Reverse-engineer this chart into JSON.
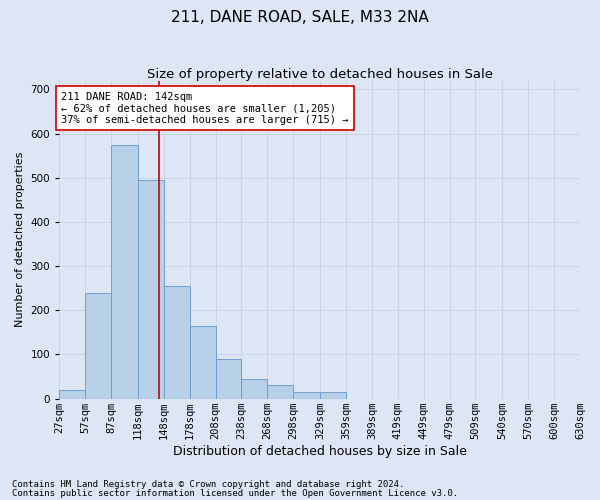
{
  "title": "211, DANE ROAD, SALE, M33 2NA",
  "subtitle": "Size of property relative to detached houses in Sale",
  "xlabel": "Distribution of detached houses by size in Sale",
  "ylabel": "Number of detached properties",
  "footnote1": "Contains HM Land Registry data © Crown copyright and database right 2024.",
  "footnote2": "Contains public sector information licensed under the Open Government Licence v3.0.",
  "annotation_line1": "211 DANE ROAD: 142sqm",
  "annotation_line2": "← 62% of detached houses are smaller (1,205)",
  "annotation_line3": "37% of semi-detached houses are larger (715) →",
  "bin_edges": [
    27,
    57,
    87,
    118,
    148,
    178,
    208,
    238,
    268,
    298,
    329,
    359,
    389,
    419,
    449,
    479,
    509,
    540,
    570,
    600,
    630
  ],
  "bar_heights": [
    20,
    240,
    575,
    495,
    255,
    165,
    90,
    45,
    30,
    15,
    15,
    0,
    0,
    0,
    0,
    0,
    0,
    0,
    0,
    0
  ],
  "bar_color": "#b8cfe8",
  "bar_edge_color": "#6699cc",
  "vline_color": "#cc0000",
  "vline_x": 142,
  "annotation_box_facecolor": "#ffffff",
  "annotation_box_edgecolor": "#cc0000",
  "ylim_max": 720,
  "yticks": [
    0,
    100,
    200,
    300,
    400,
    500,
    600,
    700
  ],
  "grid_color": "#c8d4e8",
  "background_color": "#dce6f5",
  "title_fontsize": 11,
  "subtitle_fontsize": 9.5,
  "xlabel_fontsize": 9,
  "ylabel_fontsize": 8,
  "tick_fontsize": 7.5,
  "annotation_fontsize": 7.5,
  "footnote_fontsize": 6.5
}
